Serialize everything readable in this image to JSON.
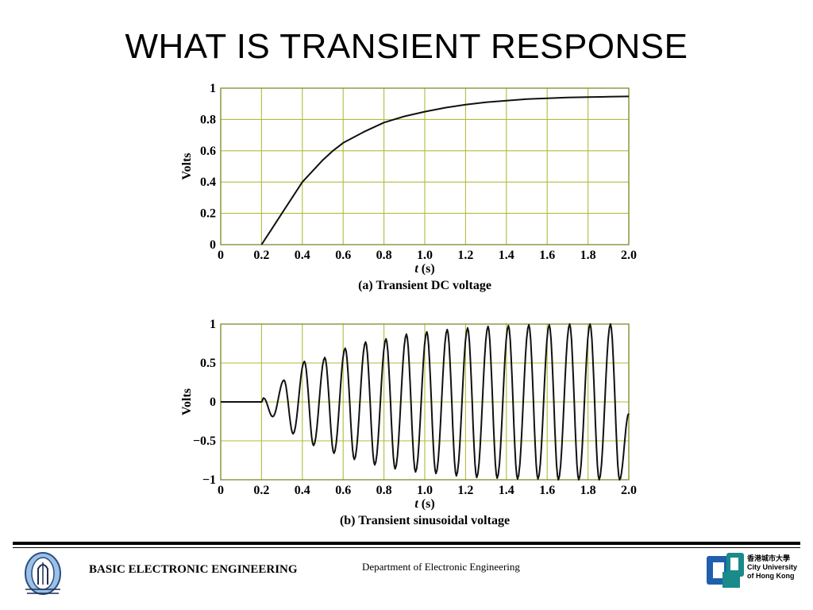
{
  "slide": {
    "title": "WHAT IS TRANSIENT RESPONSE"
  },
  "chart_data": [
    {
      "type": "line",
      "caption": "(a) Transient DC voltage",
      "xlabel": "t (s)",
      "ylabel": "Volts",
      "xlim": [
        0,
        2.0
      ],
      "ylim": [
        0,
        1
      ],
      "x_ticks": [
        "0",
        "0.2",
        "0.4",
        "0.6",
        "0.8",
        "1.0",
        "1.2",
        "1.4",
        "1.6",
        "1.8",
        "2.0"
      ],
      "y_ticks": [
        "0",
        "0.2",
        "0.4",
        "0.6",
        "0.8",
        "1"
      ],
      "grid": true,
      "series": [
        {
          "x": [
            0.2,
            0.25,
            0.3,
            0.35,
            0.4,
            0.45,
            0.5,
            0.55,
            0.6,
            0.7,
            0.8,
            0.9,
            1.0,
            1.1,
            1.2,
            1.3,
            1.4,
            1.5,
            1.6,
            1.7,
            1.8,
            1.9,
            2.0
          ],
          "y": [
            0.0,
            0.1,
            0.2,
            0.3,
            0.4,
            0.47,
            0.54,
            0.6,
            0.65,
            0.72,
            0.78,
            0.82,
            0.85,
            0.875,
            0.895,
            0.91,
            0.92,
            0.93,
            0.935,
            0.94,
            0.943,
            0.945,
            0.947
          ]
        }
      ]
    },
    {
      "type": "line",
      "caption": "(b) Transient sinusoidal voltage",
      "xlabel": "t (s)",
      "ylabel": "Volts",
      "xlim": [
        0,
        2.0
      ],
      "ylim": [
        -1,
        1
      ],
      "x_ticks": [
        "0",
        "0.2",
        "0.4",
        "0.6",
        "0.8",
        "1.0",
        "1.2",
        "1.4",
        "1.6",
        "1.8",
        "2.0"
      ],
      "y_ticks": [
        "−1",
        "−0.5",
        "0",
        "0.5",
        "1"
      ],
      "grid": true,
      "series": [
        {
          "x": [
            0,
            0.1,
            0.2,
            0.21,
            0.255,
            0.31,
            0.355,
            0.41,
            0.455,
            0.51,
            0.555,
            0.61,
            0.655,
            0.71,
            0.755,
            0.81,
            0.855,
            0.91,
            0.955,
            1.01,
            1.055,
            1.11,
            1.155,
            1.21,
            1.255,
            1.31,
            1.355,
            1.41,
            1.455,
            1.51,
            1.555,
            1.61,
            1.655,
            1.71,
            1.755,
            1.81,
            1.855,
            1.91,
            1.955,
            2.0
          ],
          "y": [
            0,
            0,
            0,
            0.05,
            -0.19,
            0.28,
            -0.41,
            0.52,
            -0.56,
            0.57,
            -0.66,
            0.69,
            -0.74,
            0.77,
            -0.81,
            0.81,
            -0.86,
            0.87,
            -0.9,
            0.9,
            -0.92,
            0.93,
            -0.95,
            0.95,
            -0.97,
            0.97,
            -0.98,
            0.98,
            -0.99,
            0.99,
            -0.99,
            0.99,
            -1.0,
            1.0,
            -1.0,
            1.0,
            -1.0,
            1.0,
            -1.0,
            -0.15
          ]
        }
      ]
    }
  ],
  "footer": {
    "course": "BASIC ELECTRONIC ENGINEERING",
    "department": "Department of Electronic Engineering",
    "university_chinese": "香港城市大學",
    "university_line1": "City University",
    "university_line2": "of Hong Kong",
    "colors": {
      "cityu_blue": "#1f5fae",
      "cityu_teal": "#1a8a8a",
      "left_logo_blue": "#7aa6d6"
    }
  }
}
